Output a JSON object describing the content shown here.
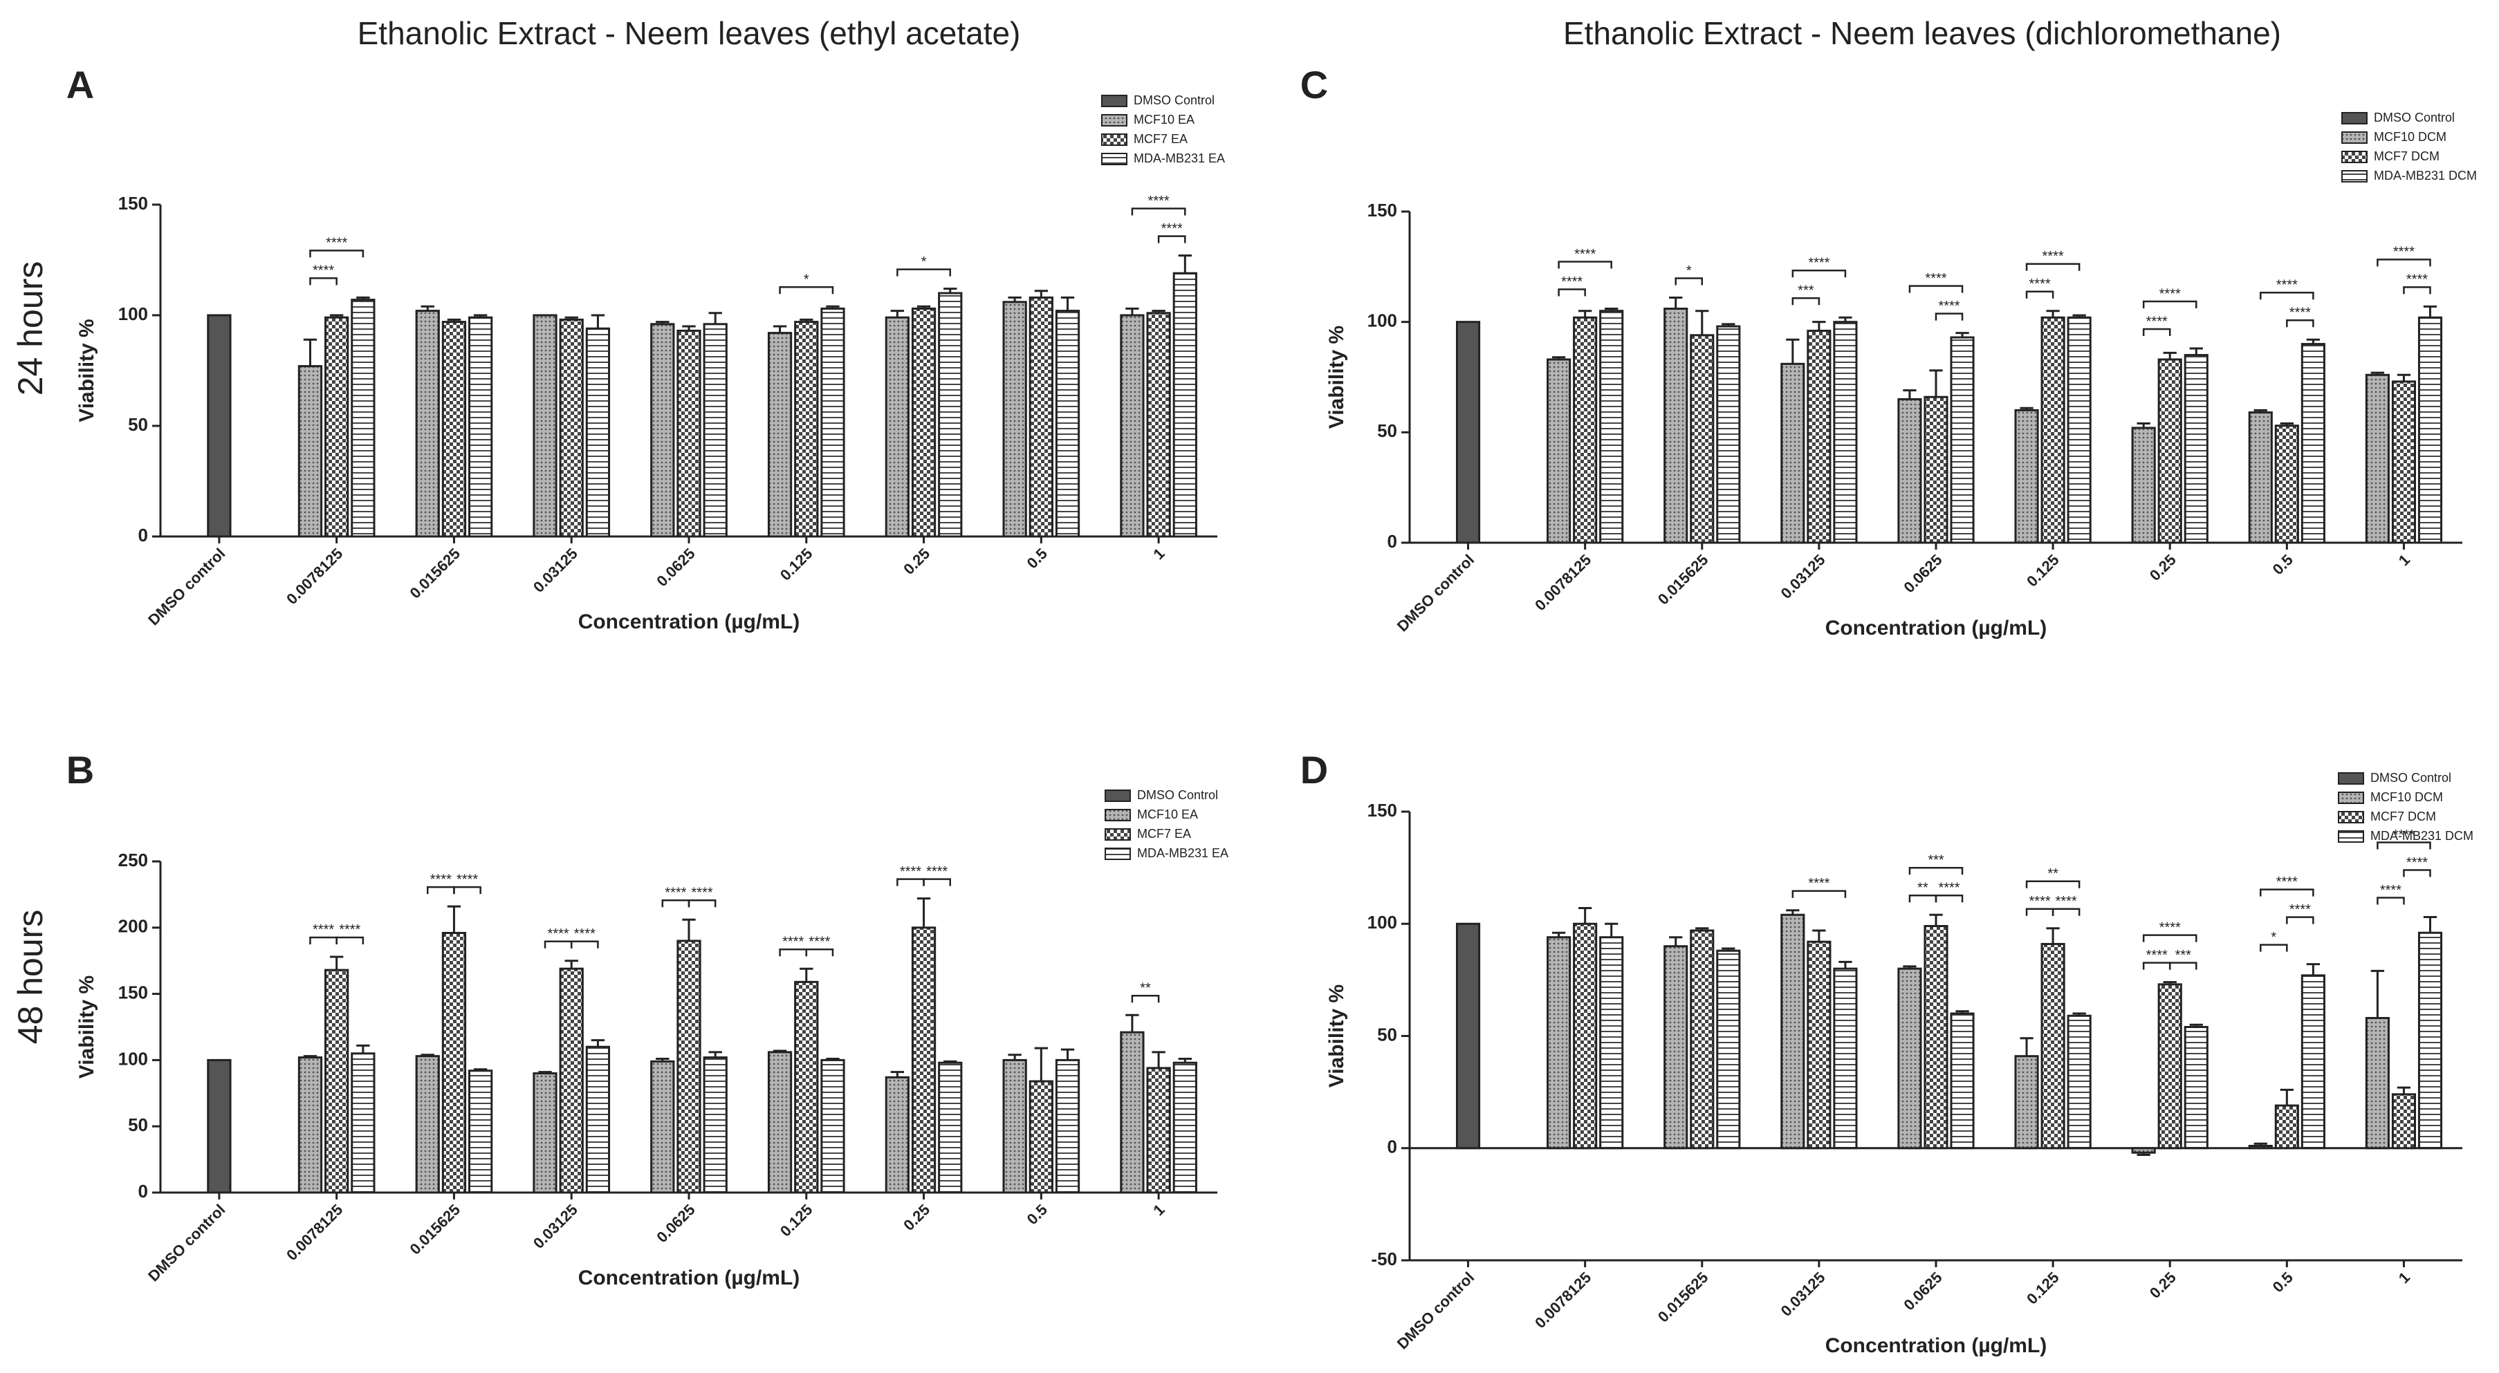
{
  "titles": [
    "Ethanolic Extract - Neem leaves (ethyl acetate)",
    "Ethanolic Extract - Neem leaves (dichloromethane)"
  ],
  "row_labels": [
    "24 hours",
    "48 hours"
  ],
  "chart_data": [
    {
      "type": "bar",
      "panel": "A",
      "ylabel": "Viability %",
      "xlabel": "Concentration (µg/mL)",
      "categories": [
        "DMSO control",
        "0.0078125",
        "0.015625",
        "0.03125",
        "0.0625",
        "0.125",
        "0.25",
        "0.5",
        "1"
      ],
      "ylim": [
        0,
        150
      ],
      "yticks": [
        0,
        50,
        100,
        150
      ],
      "legend": "upper right",
      "series": [
        {
          "name": "DMSO Control",
          "pattern": "solid",
          "values": [
            100,
            null,
            null,
            null,
            null,
            null,
            null,
            null,
            null
          ],
          "errors": [
            0,
            null,
            null,
            null,
            null,
            null,
            null,
            null,
            null
          ]
        },
        {
          "name": "MCF10 EA",
          "pattern": "dots",
          "values": [
            null,
            77,
            102,
            100,
            96,
            92,
            99,
            106,
            100
          ],
          "errors": [
            null,
            12,
            2,
            0,
            1,
            3,
            3,
            2,
            3
          ]
        },
        {
          "name": "MCF7 EA",
          "pattern": "checker",
          "values": [
            null,
            99,
            97,
            98,
            93,
            97,
            103,
            108,
            101
          ],
          "errors": [
            null,
            1,
            1,
            1,
            2,
            1,
            1,
            3,
            1
          ]
        },
        {
          "name": "MDA-MB231 EA",
          "pattern": "hstripes",
          "values": [
            null,
            107,
            99,
            94,
            96,
            103,
            110,
            102,
            119
          ],
          "errors": [
            null,
            1,
            1,
            6,
            5,
            1,
            2,
            6,
            8
          ]
        }
      ],
      "annotations": [
        {
          "category": 1,
          "series": [
            1,
            2
          ],
          "level": 0,
          "text": "****"
        },
        {
          "category": 1,
          "series": [
            1,
            3
          ],
          "level": 1,
          "text": "****"
        },
        {
          "category": 5,
          "series": [
            1,
            3
          ],
          "level": 0,
          "text": "*"
        },
        {
          "category": 6,
          "series": [
            1,
            3
          ],
          "level": 0,
          "text": "*"
        },
        {
          "category": 8,
          "series": [
            2,
            3
          ],
          "level": 0,
          "text": "****"
        },
        {
          "category": 8,
          "series": [
            1,
            3
          ],
          "level": 1,
          "text": "****"
        }
      ]
    },
    {
      "type": "bar",
      "panel": "B",
      "ylabel": "Viability %",
      "xlabel": "Concentration (µg/mL)",
      "categories": [
        "DMSO control",
        "0.0078125",
        "0.015625",
        "0.03125",
        "0.0625",
        "0.125",
        "0.25",
        "0.5",
        "1"
      ],
      "ylim": [
        0,
        250
      ],
      "yticks": [
        0,
        50,
        100,
        150,
        200,
        250
      ],
      "legend": "upper right",
      "series": [
        {
          "name": "DMSO Control",
          "pattern": "solid",
          "values": [
            100,
            null,
            null,
            null,
            null,
            null,
            null,
            null,
            null
          ],
          "errors": [
            0,
            null,
            null,
            null,
            null,
            null,
            null,
            null,
            null
          ]
        },
        {
          "name": "MCF10 EA",
          "pattern": "dots",
          "values": [
            null,
            102,
            103,
            90,
            99,
            106,
            87,
            100,
            121
          ],
          "errors": [
            null,
            1,
            1,
            1,
            2,
            1,
            4,
            4,
            13
          ]
        },
        {
          "name": "MCF7 EA",
          "pattern": "checker",
          "values": [
            null,
            168,
            196,
            169,
            190,
            159,
            200,
            84,
            94
          ],
          "errors": [
            null,
            10,
            20,
            6,
            16,
            10,
            22,
            25,
            12
          ]
        },
        {
          "name": "MDA-MB231 EA",
          "pattern": "hstripes",
          "values": [
            null,
            105,
            92,
            110,
            102,
            100,
            98,
            100,
            98
          ],
          "errors": [
            null,
            6,
            1,
            5,
            4,
            1,
            1,
            8,
            3
          ]
        }
      ],
      "annotations": [
        {
          "category": 1,
          "series": [
            1,
            2
          ],
          "level": 0,
          "text": "****"
        },
        {
          "category": 1,
          "series": [
            2,
            3
          ],
          "level": 0,
          "text": "****"
        },
        {
          "category": 2,
          "series": [
            1,
            2
          ],
          "level": 0,
          "text": "****"
        },
        {
          "category": 2,
          "series": [
            2,
            3
          ],
          "level": 0,
          "text": "****"
        },
        {
          "category": 3,
          "series": [
            1,
            2
          ],
          "level": 0,
          "text": "****"
        },
        {
          "category": 3,
          "series": [
            2,
            3
          ],
          "level": 0,
          "text": "****"
        },
        {
          "category": 4,
          "series": [
            1,
            2
          ],
          "level": 0,
          "text": "****"
        },
        {
          "category": 4,
          "series": [
            2,
            3
          ],
          "level": 0,
          "text": "****"
        },
        {
          "category": 5,
          "series": [
            1,
            2
          ],
          "level": 0,
          "text": "****"
        },
        {
          "category": 5,
          "series": [
            2,
            3
          ],
          "level": 0,
          "text": "****"
        },
        {
          "category": 6,
          "series": [
            1,
            2
          ],
          "level": 0,
          "text": "****"
        },
        {
          "category": 6,
          "series": [
            2,
            3
          ],
          "level": 0,
          "text": "****"
        },
        {
          "category": 8,
          "series": [
            1,
            2
          ],
          "level": 0,
          "text": "**"
        }
      ]
    },
    {
      "type": "bar",
      "panel": "C",
      "ylabel": "Viability %",
      "xlabel": "Concentration (µg/mL)",
      "categories": [
        "DMSO control",
        "0.0078125",
        "0.015625",
        "0.03125",
        "0.0625",
        "0.125",
        "0.25",
        "0.5",
        "1"
      ],
      "ylim": [
        0,
        150
      ],
      "yticks": [
        0,
        50,
        100,
        150
      ],
      "legend": "upper right",
      "series": [
        {
          "name": "DMSO Control",
          "pattern": "solid",
          "values": [
            100,
            null,
            null,
            null,
            null,
            null,
            null,
            null,
            null
          ],
          "errors": [
            0,
            null,
            null,
            null,
            null,
            null,
            null,
            null,
            null
          ]
        },
        {
          "name": "MCF10 DCM",
          "pattern": "dots",
          "values": [
            null,
            83,
            106,
            81,
            65,
            60,
            52,
            59,
            76
          ],
          "errors": [
            null,
            1,
            5,
            11,
            4,
            1,
            2,
            1,
            1
          ]
        },
        {
          "name": "MCF7 DCM",
          "pattern": "checker",
          "values": [
            null,
            102,
            94,
            96,
            66,
            102,
            83,
            53,
            73
          ],
          "errors": [
            null,
            3,
            11,
            4,
            12,
            3,
            3,
            1,
            3
          ]
        },
        {
          "name": "MDA-MB231 DCM",
          "pattern": "hstripes",
          "values": [
            null,
            105,
            98,
            100,
            93,
            102,
            85,
            90,
            102
          ],
          "errors": [
            null,
            1,
            1,
            2,
            2,
            1,
            3,
            2,
            5
          ]
        }
      ],
      "annotations": [
        {
          "category": 1,
          "series": [
            1,
            2
          ],
          "level": 0,
          "text": "****"
        },
        {
          "category": 1,
          "series": [
            1,
            3
          ],
          "level": 1,
          "text": "****"
        },
        {
          "category": 2,
          "series": [
            1,
            2
          ],
          "level": 0,
          "text": "*"
        },
        {
          "category": 3,
          "series": [
            1,
            2
          ],
          "level": 0,
          "text": "***"
        },
        {
          "category": 3,
          "series": [
            1,
            3
          ],
          "level": 1,
          "text": "****"
        },
        {
          "category": 4,
          "series": [
            2,
            3
          ],
          "level": 0,
          "text": "****"
        },
        {
          "category": 4,
          "series": [
            1,
            3
          ],
          "level": 1,
          "text": "****"
        },
        {
          "category": 5,
          "series": [
            1,
            2
          ],
          "level": 0,
          "text": "****"
        },
        {
          "category": 5,
          "series": [
            1,
            3
          ],
          "level": 1,
          "text": "****"
        },
        {
          "category": 6,
          "series": [
            1,
            2
          ],
          "level": 0,
          "text": "****"
        },
        {
          "category": 6,
          "series": [
            1,
            3
          ],
          "level": 1,
          "text": "****"
        },
        {
          "category": 7,
          "series": [
            2,
            3
          ],
          "level": 0,
          "text": "****"
        },
        {
          "category": 7,
          "series": [
            1,
            3
          ],
          "level": 1,
          "text": "****"
        },
        {
          "category": 8,
          "series": [
            2,
            3
          ],
          "level": 0,
          "text": "****"
        },
        {
          "category": 8,
          "series": [
            1,
            3
          ],
          "level": 1,
          "text": "****"
        }
      ]
    },
    {
      "type": "bar",
      "panel": "D",
      "ylabel": "Viability %",
      "xlabel": "Concentration (µg/mL)",
      "categories": [
        "DMSO control",
        "0.0078125",
        "0.015625",
        "0.03125",
        "0.0625",
        "0.125",
        "0.25",
        "0.5",
        "1"
      ],
      "ylim": [
        -50,
        150
      ],
      "yticks": [
        -50,
        0,
        50,
        100,
        150
      ],
      "legend": "upper right",
      "series": [
        {
          "name": "DMSO Control",
          "pattern": "solid",
          "values": [
            100,
            null,
            null,
            null,
            null,
            null,
            null,
            null,
            null
          ],
          "errors": [
            0,
            null,
            null,
            null,
            null,
            null,
            null,
            null,
            null
          ]
        },
        {
          "name": "MCF10 DCM",
          "pattern": "dots",
          "values": [
            null,
            94,
            90,
            104,
            80,
            41,
            -2,
            1,
            58
          ],
          "errors": [
            null,
            2,
            4,
            2,
            1,
            8,
            1,
            1,
            21
          ]
        },
        {
          "name": "MCF7 DCM",
          "pattern": "checker",
          "values": [
            null,
            100,
            97,
            92,
            99,
            91,
            73,
            19,
            24
          ],
          "errors": [
            null,
            7,
            1,
            5,
            5,
            7,
            1,
            7,
            3
          ]
        },
        {
          "name": "MDA-MB231 DCM",
          "pattern": "hstripes",
          "values": [
            null,
            94,
            88,
            80,
            60,
            59,
            54,
            77,
            96
          ],
          "errors": [
            null,
            6,
            1,
            3,
            1,
            1,
            1,
            5,
            7
          ]
        }
      ],
      "annotations": [
        {
          "category": 3,
          "series": [
            1,
            3
          ],
          "level": 0,
          "text": "****"
        },
        {
          "category": 4,
          "series": [
            1,
            2
          ],
          "level": 0,
          "text": "**"
        },
        {
          "category": 4,
          "series": [
            2,
            3
          ],
          "level": 0,
          "text": "****"
        },
        {
          "category": 4,
          "series": [
            1,
            3
          ],
          "level": 1,
          "text": "***"
        },
        {
          "category": 5,
          "series": [
            1,
            2
          ],
          "level": 0,
          "text": "****"
        },
        {
          "category": 5,
          "series": [
            2,
            3
          ],
          "level": 0,
          "text": "****"
        },
        {
          "category": 5,
          "series": [
            1,
            3
          ],
          "level": 1,
          "text": "**"
        },
        {
          "category": 6,
          "series": [
            1,
            2
          ],
          "level": 0,
          "text": "****"
        },
        {
          "category": 6,
          "series": [
            2,
            3
          ],
          "level": 0,
          "text": "***"
        },
        {
          "category": 6,
          "series": [
            1,
            3
          ],
          "level": 1,
          "text": "****"
        },
        {
          "category": 7,
          "series": [
            1,
            2
          ],
          "level": 0,
          "text": "*"
        },
        {
          "category": 7,
          "series": [
            2,
            3
          ],
          "level": 1,
          "text": "****"
        },
        {
          "category": 7,
          "series": [
            1,
            3
          ],
          "level": 2,
          "text": "****"
        },
        {
          "category": 8,
          "series": [
            1,
            2
          ],
          "level": 0,
          "text": "****"
        },
        {
          "category": 8,
          "series": [
            2,
            3
          ],
          "level": 1,
          "text": "****"
        },
        {
          "category": 8,
          "series": [
            1,
            3
          ],
          "level": 2,
          "text": "****"
        }
      ]
    }
  ]
}
